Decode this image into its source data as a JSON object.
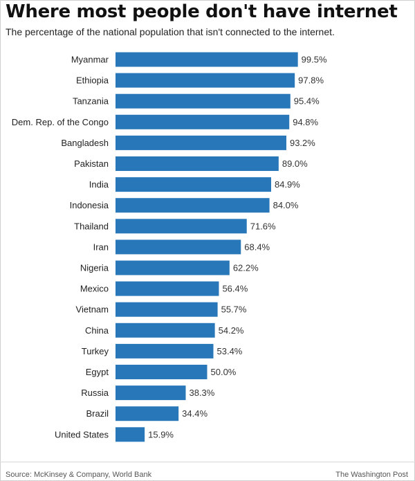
{
  "header": {
    "title": "Where most people don't have internet",
    "subtitle": "The percentage of the national population that isn't connected to the internet."
  },
  "footer": {
    "source": "Source: McKinsey & Company, World Bank",
    "credit": "The Washington Post"
  },
  "chart_data": {
    "type": "bar",
    "orientation": "horizontal",
    "title": "Where most people don't have internet",
    "subtitle": "The percentage of the national population that isn't connected to the internet.",
    "categories": [
      "Myanmar",
      "Ethiopia",
      "Tanzania",
      "Dem. Rep. of the Congo",
      "Bangladesh",
      "Pakistan",
      "India",
      "Indonesia",
      "Thailand",
      "Iran",
      "Nigeria",
      "Mexico",
      "Vietnam",
      "China",
      "Turkey",
      "Egypt",
      "Russia",
      "Brazil",
      "United States"
    ],
    "values": [
      99.5,
      97.8,
      95.4,
      94.8,
      93.2,
      89.0,
      84.9,
      84.0,
      71.6,
      68.4,
      62.2,
      56.4,
      55.7,
      54.2,
      53.4,
      50.0,
      38.3,
      34.4,
      15.9
    ],
    "value_labels": [
      "99.5%",
      "97.8%",
      "95.4%",
      "94.8%",
      "93.2%",
      "89.0%",
      "84.9%",
      "84.0%",
      "71.6%",
      "68.4%",
      "62.2%",
      "56.4%",
      "55.7%",
      "54.2%",
      "53.4%",
      "50.0%",
      "38.3%",
      "34.4%",
      "15.9%"
    ],
    "unit": "%",
    "xlim": [
      0,
      100
    ],
    "grid": false,
    "legend": "none",
    "bar_color": "#2877b9"
  }
}
